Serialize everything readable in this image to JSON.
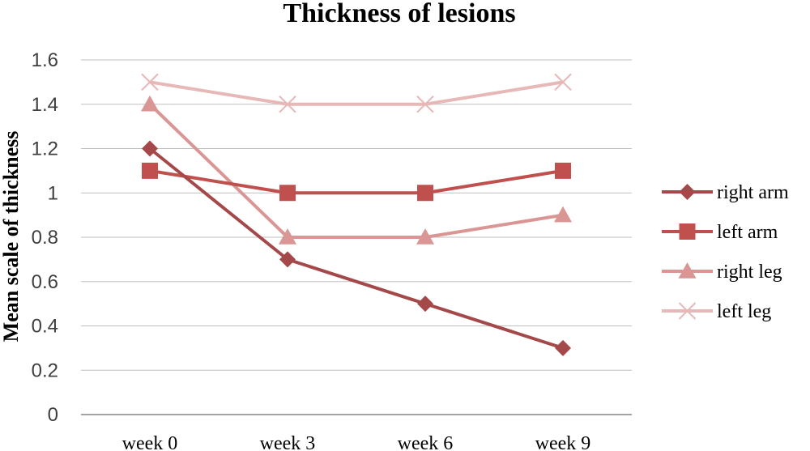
{
  "chart_data": {
    "type": "line",
    "title": "Thickness  of lesions",
    "xlabel": "",
    "ylabel": "Mean scale of thickness",
    "categories": [
      "week 0",
      "week 3",
      "week 6",
      "week 9"
    ],
    "ylim": [
      0,
      1.6
    ],
    "yticks": [
      "0",
      "0.2",
      "0.4",
      "0.6",
      "0.8",
      "1",
      "1.2",
      "1.4",
      "1.6"
    ],
    "grid": true,
    "legend_position": "right",
    "series": [
      {
        "name": "right arm",
        "values": [
          1.2,
          0.7,
          0.5,
          0.3
        ],
        "color": "#a5484a",
        "marker": "diamond"
      },
      {
        "name": "left arm",
        "values": [
          1.1,
          1.0,
          1.0,
          1.1
        ],
        "color": "#c0504d",
        "marker": "square"
      },
      {
        "name": "right leg",
        "values": [
          1.4,
          0.8,
          0.8,
          0.9
        ],
        "color": "#d99694",
        "marker": "triangle"
      },
      {
        "name": "left leg",
        "values": [
          1.5,
          1.4,
          1.4,
          1.5
        ],
        "color": "#e6b9b8",
        "marker": "x"
      }
    ]
  }
}
